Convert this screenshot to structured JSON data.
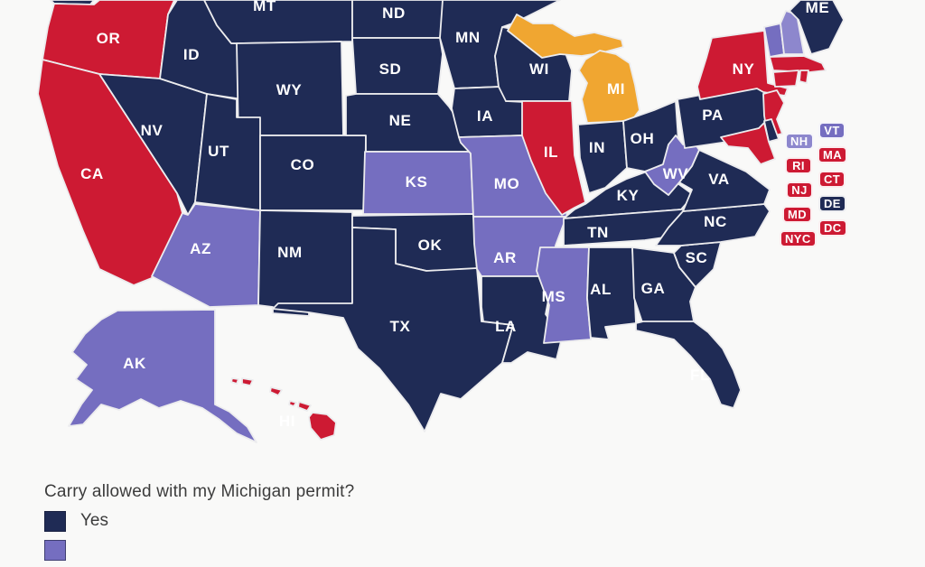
{
  "page": {
    "background": "#f9f9f8",
    "border_color": "#ececee"
  },
  "map": {
    "categories": {
      "yes": "#1F2B55",
      "no": "#CD1A33",
      "restricted": "#756EC0",
      "restricted_light": "#8D87CD",
      "michigan": "#F0A631"
    },
    "label_color": "#ffffff",
    "label_dark_color": "#1F2B55",
    "states": [
      {
        "abbr": "WA",
        "label": "",
        "category": "yes"
      },
      {
        "abbr": "OR",
        "label": "OR",
        "category": "no"
      },
      {
        "abbr": "CA",
        "label": "CA",
        "category": "no"
      },
      {
        "abbr": "NV",
        "label": "NV",
        "category": "yes"
      },
      {
        "abbr": "ID",
        "label": "ID",
        "category": "yes"
      },
      {
        "abbr": "MT",
        "label": "MT",
        "category": "yes"
      },
      {
        "abbr": "WY",
        "label": "WY",
        "category": "yes"
      },
      {
        "abbr": "UT",
        "label": "UT",
        "category": "yes"
      },
      {
        "abbr": "CO",
        "label": "CO",
        "category": "yes"
      },
      {
        "abbr": "AZ",
        "label": "AZ",
        "category": "restricted"
      },
      {
        "abbr": "NM",
        "label": "NM",
        "category": "yes"
      },
      {
        "abbr": "ND",
        "label": "ND",
        "category": "yes"
      },
      {
        "abbr": "SD",
        "label": "SD",
        "category": "yes"
      },
      {
        "abbr": "NE",
        "label": "NE",
        "category": "yes"
      },
      {
        "abbr": "KS",
        "label": "KS",
        "category": "restricted"
      },
      {
        "abbr": "OK",
        "label": "OK",
        "category": "yes"
      },
      {
        "abbr": "TX",
        "label": "TX",
        "category": "yes"
      },
      {
        "abbr": "MN",
        "label": "MN",
        "category": "yes"
      },
      {
        "abbr": "IA",
        "label": "IA",
        "category": "yes"
      },
      {
        "abbr": "MO",
        "label": "MO",
        "category": "restricted"
      },
      {
        "abbr": "AR",
        "label": "AR",
        "category": "restricted"
      },
      {
        "abbr": "LA",
        "label": "LA",
        "category": "yes"
      },
      {
        "abbr": "WI",
        "label": "WI",
        "category": "yes"
      },
      {
        "abbr": "IL",
        "label": "IL",
        "category": "no"
      },
      {
        "abbr": "MS",
        "label": "MS",
        "category": "restricted"
      },
      {
        "abbr": "MI",
        "label": "MI",
        "category": "michigan"
      },
      {
        "abbr": "IN",
        "label": "IN",
        "category": "yes"
      },
      {
        "abbr": "OH",
        "label": "OH",
        "category": "yes"
      },
      {
        "abbr": "KY",
        "label": "KY",
        "category": "yes"
      },
      {
        "abbr": "TN",
        "label": "TN",
        "category": "yes"
      },
      {
        "abbr": "AL",
        "label": "AL",
        "category": "yes"
      },
      {
        "abbr": "GA",
        "label": "GA",
        "category": "yes"
      },
      {
        "abbr": "FL",
        "label": "FL",
        "category": "yes"
      },
      {
        "abbr": "SC",
        "label": "SC",
        "category": "yes"
      },
      {
        "abbr": "NC",
        "label": "NC",
        "category": "yes"
      },
      {
        "abbr": "VA",
        "label": "VA",
        "category": "yes"
      },
      {
        "abbr": "WV",
        "label": "WV",
        "category": "restricted"
      },
      {
        "abbr": "PA",
        "label": "PA",
        "category": "yes"
      },
      {
        "abbr": "NY",
        "label": "NY",
        "category": "no"
      },
      {
        "abbr": "NJ",
        "label": "",
        "category": "no"
      },
      {
        "abbr": "DE",
        "label": "",
        "category": "yes"
      },
      {
        "abbr": "MD",
        "label": "",
        "category": "no"
      },
      {
        "abbr": "VT",
        "label": "",
        "category": "restricted"
      },
      {
        "abbr": "NH",
        "label": "",
        "category": "restricted_light"
      },
      {
        "abbr": "ME",
        "label": "ME",
        "category": "yes"
      },
      {
        "abbr": "MA",
        "label": "",
        "category": "no"
      },
      {
        "abbr": "CT",
        "label": "",
        "category": "no"
      },
      {
        "abbr": "RI",
        "label": "",
        "category": "no"
      },
      {
        "abbr": "AK",
        "label": "AK",
        "category": "restricted"
      },
      {
        "abbr": "HI",
        "label": "HI",
        "category": "no",
        "label_dark": true
      }
    ],
    "badges": [
      {
        "abbr": "NH",
        "category": "restricted_light"
      },
      {
        "abbr": "VT",
        "category": "restricted"
      },
      {
        "abbr": "RI",
        "category": "no"
      },
      {
        "abbr": "MA",
        "category": "no"
      },
      {
        "abbr": "NJ",
        "category": "no"
      },
      {
        "abbr": "CT",
        "category": "no"
      },
      {
        "abbr": "MD",
        "category": "no"
      },
      {
        "abbr": "DE",
        "category": "yes"
      },
      {
        "abbr": "NYC",
        "category": "no"
      },
      {
        "abbr": "DC",
        "category": "no"
      }
    ]
  },
  "legend": {
    "title": "Carry allowed with my Michigan permit?",
    "items": [
      {
        "label": "Yes",
        "category": "yes"
      },
      {
        "label": "",
        "category": "restricted"
      }
    ]
  }
}
